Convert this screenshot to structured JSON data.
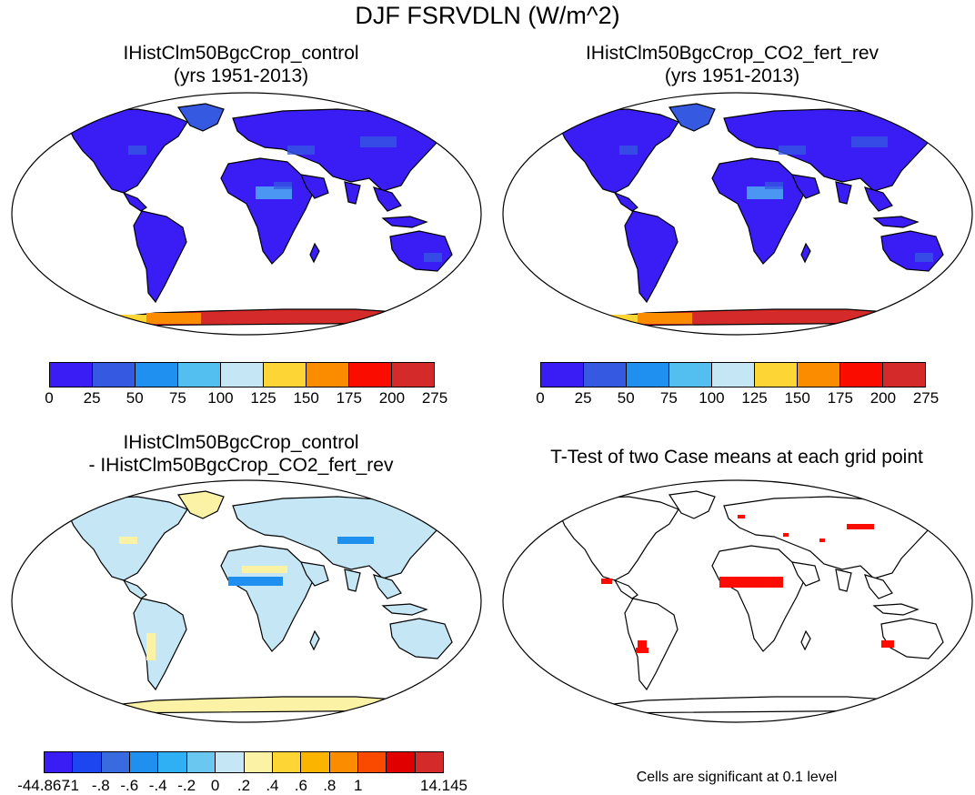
{
  "main_title": "DJF FSRVDLN (W/m^2)",
  "panels": [
    {
      "title1": "IHistClm50BgcCrop_control",
      "title2": "(yrs 1951-2013)"
    },
    {
      "title1": "IHistClm50BgcCrop_CO2_fert_rev",
      "title2": "(yrs 1951-2013)"
    },
    {
      "title1": "IHistClm50BgcCrop_control",
      "title2": "- IHistClm50BgcCrop_CO2_fert_rev"
    },
    {
      "title1": "T-Test of two Case means at each grid point",
      "title2": ""
    }
  ],
  "colorbar_top": {
    "colors": [
      "#3a1cf5",
      "#3559e0",
      "#1f8ff0",
      "#52bff0",
      "#c5e6f5",
      "#fdd535",
      "#fb8c00",
      "#fa0c00",
      "#d42a2a"
    ],
    "labels": [
      "0",
      "25",
      "50",
      "75",
      "100",
      "125",
      "150",
      "175",
      "200",
      "275"
    ]
  },
  "colorbar_diff": {
    "colors": [
      "#3a1cf5",
      "#1e46f0",
      "#3a6ae0",
      "#1f8ff0",
      "#2fb0f5",
      "#6ac8f0",
      "#c5e6f5",
      "#fbf2a5",
      "#fdd535",
      "#fbb400",
      "#fb8c00",
      "#fa4a00",
      "#e00000",
      "#d42a2a"
    ],
    "labels": [
      "-44.867",
      "-1",
      "-.8",
      "-.6",
      "-.4",
      "-.2",
      "0",
      ".2",
      ".4",
      ".6",
      ".8",
      "1",
      "14.145"
    ]
  },
  "significance_note": "Cells are significant at 0.1 level",
  "map_colors": {
    "ocean": "#ffffff",
    "land_base": "#3a1cf5",
    "land_mid": "#3559e0",
    "land_light": "#52bff0",
    "antarctic_hot": "#d42a2a",
    "antarctic_warm": "#fb8c00",
    "antarctic_yellow": "#fdd535",
    "diff_land": "#c5e6f5",
    "diff_yellow": "#fbf2a5",
    "diff_blue": "#1f8ff0",
    "sig_red": "#fa0c00"
  }
}
